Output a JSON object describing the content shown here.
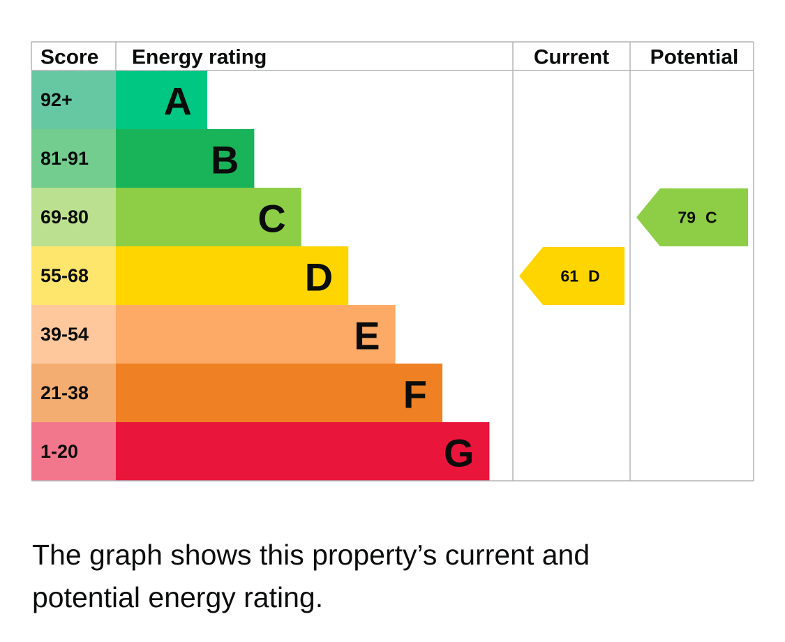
{
  "chart_data": {
    "type": "epc",
    "headers": [
      "Score",
      "Energy rating",
      "Current",
      "Potential"
    ],
    "categories": [
      "A",
      "B",
      "C",
      "D",
      "E",
      "F",
      "G"
    ],
    "score_ranges": [
      "92+",
      "81-91",
      "69-80",
      "55-68",
      "39-54",
      "21-38",
      "1-20"
    ],
    "colors": [
      "#00c781",
      "#19b459",
      "#8dce46",
      "#ffd500",
      "#fcaa65",
      "#ef8023",
      "#e9153b"
    ],
    "score_colors": [
      "#66c8a2",
      "#72cd8e",
      "#bbe08f",
      "#fee56c",
      "#fec89c",
      "#f4ad71",
      "#f2768c"
    ],
    "current": {
      "score": 61,
      "band": "D"
    },
    "potential": {
      "score": 79,
      "band": "C"
    },
    "caption": "The graph shows this property’s current and potential energy rating."
  }
}
